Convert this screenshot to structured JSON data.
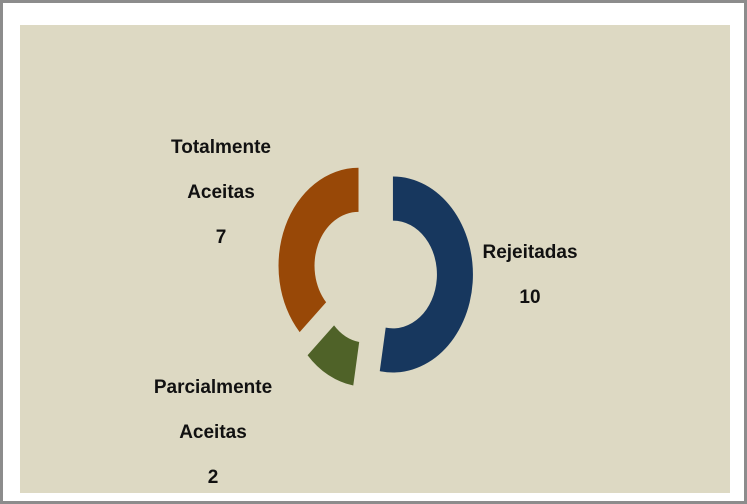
{
  "chart_data": {
    "type": "donut",
    "categories": [
      "Rejeitadas",
      "Parcialmente Aceitas",
      "Totalmente Aceitas"
    ],
    "values": [
      10,
      2,
      7
    ],
    "colors": [
      "#17375e",
      "#4f6228",
      "#984807"
    ]
  }
}
